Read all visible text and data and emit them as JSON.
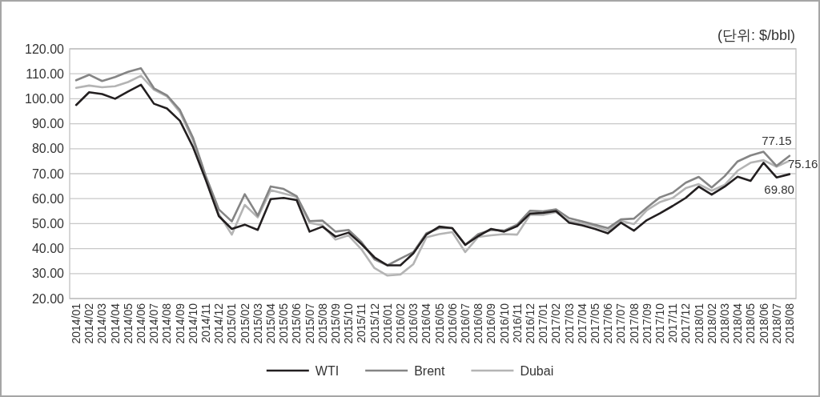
{
  "chart_data": {
    "type": "line",
    "annotations": [
      "(단위: $/bbl)"
    ],
    "categories": [
      "2014/01",
      "2014/02",
      "2014/03",
      "2014/04",
      "2014/05",
      "2014/06",
      "2014/07",
      "2014/08",
      "2014/09",
      "2014/10",
      "2014/11",
      "2014/12",
      "2015/01",
      "2015/02",
      "2015/03",
      "2015/04",
      "2015/05",
      "2015/06",
      "2015/07",
      "2015/08",
      "2015/09",
      "2015/10",
      "2015/11",
      "2015/12",
      "2016/01",
      "2016/02",
      "2016/03",
      "2016/04",
      "2016/05",
      "2016/06",
      "2016/07",
      "2016/08",
      "2016/09",
      "2016/10",
      "2016/11",
      "2016/12",
      "2017/01",
      "2017/02",
      "2017/03",
      "2017/04",
      "2017/05",
      "2017/06",
      "2017/07",
      "2017/08",
      "2017/09",
      "2017/10",
      "2017/11",
      "2017/12",
      "2018/01",
      "2018/02",
      "2018/03",
      "2018/04",
      "2018/05",
      "2018/06",
      "2018/07",
      "2018/08"
    ],
    "ylim": [
      20,
      120
    ],
    "yticks": [
      {
        "value": 20,
        "label": "20.00"
      },
      {
        "value": 30,
        "label": "30.00"
      },
      {
        "value": 40,
        "label": "40.00"
      },
      {
        "value": 50,
        "label": "50.00"
      },
      {
        "value": 60,
        "label": "60.00"
      },
      {
        "value": 70,
        "label": "70.00"
      },
      {
        "value": 80,
        "label": "80.00"
      },
      {
        "value": 90,
        "label": "90.00"
      },
      {
        "value": 100,
        "label": "100.00"
      },
      {
        "value": 110,
        "label": "110.00"
      },
      {
        "value": 120,
        "label": "120.00"
      }
    ],
    "grid": "y",
    "legend": "bottom",
    "series": [
      {
        "name": "WTI",
        "color": "#231f20",
        "values": [
          97.5,
          102.6,
          101.9,
          100.0,
          102.9,
          105.6,
          98.0,
          96.1,
          91.2,
          80.8,
          67.4,
          53.0,
          47.9,
          49.6,
          47.5,
          59.8,
          60.3,
          59.4,
          46.8,
          48.8,
          44.8,
          46.4,
          41.8,
          36.5,
          33.3,
          33.3,
          38.1,
          45.6,
          48.8,
          48.2,
          41.5,
          45.0,
          47.9,
          46.8,
          49.0,
          54.0,
          54.3,
          55.0,
          50.4,
          49.3,
          47.9,
          46.1,
          50.4,
          47.2,
          51.4,
          54.1,
          57.1,
          60.3,
          64.8,
          61.6,
          64.8,
          68.8,
          67.1,
          74.4,
          68.5,
          69.8
        ],
        "value_labels": [
          null,
          null,
          null,
          null,
          null,
          null,
          null,
          null,
          null,
          null,
          null,
          null,
          null,
          null,
          null,
          null,
          null,
          null,
          null,
          null,
          null,
          null,
          null,
          null,
          null,
          null,
          null,
          null,
          null,
          null,
          null,
          null,
          null,
          null,
          null,
          null,
          null,
          null,
          null,
          null,
          null,
          null,
          null,
          null,
          null,
          null,
          null,
          null,
          null,
          null,
          null,
          null,
          null,
          null,
          null,
          "69.80"
        ]
      },
      {
        "name": "Brent",
        "color": "#858585",
        "values": [
          107.4,
          109.6,
          107.1,
          108.7,
          110.8,
          112.2,
          104.2,
          101.4,
          95.5,
          84.5,
          69.0,
          55.7,
          50.9,
          61.8,
          53.2,
          64.9,
          63.9,
          61.0,
          51.0,
          51.2,
          46.8,
          47.5,
          42.6,
          35.7,
          33.3,
          36.0,
          38.6,
          46.1,
          48.2,
          48.2,
          41.5,
          45.8,
          47.5,
          47.2,
          49.6,
          55.2,
          54.9,
          55.7,
          52.2,
          50.9,
          49.6,
          48.2,
          51.7,
          52.0,
          56.4,
          60.5,
          62.4,
          66.4,
          68.7,
          64.5,
          69.0,
          74.9,
          77.3,
          78.8,
          73.1,
          77.15
        ],
        "value_labels": [
          null,
          null,
          null,
          null,
          null,
          null,
          null,
          null,
          null,
          null,
          null,
          null,
          null,
          null,
          null,
          null,
          null,
          null,
          null,
          null,
          null,
          null,
          null,
          null,
          null,
          null,
          null,
          null,
          null,
          null,
          null,
          null,
          null,
          null,
          null,
          null,
          null,
          null,
          null,
          null,
          null,
          null,
          null,
          null,
          null,
          null,
          null,
          null,
          null,
          null,
          null,
          null,
          null,
          null,
          null,
          "77.15"
        ]
      },
      {
        "name": "Dubai",
        "color": "#b4b4b4",
        "values": [
          104.4,
          105.3,
          104.6,
          105.0,
          106.7,
          109.2,
          103.6,
          101.0,
          94.6,
          83.4,
          67.9,
          53.9,
          45.6,
          57.5,
          52.5,
          63.4,
          62.1,
          60.7,
          50.3,
          49.3,
          43.6,
          45.3,
          39.7,
          32.2,
          29.2,
          29.6,
          33.8,
          44.5,
          45.8,
          46.6,
          38.6,
          44.7,
          45.3,
          45.8,
          45.6,
          53.6,
          53.5,
          54.6,
          51.1,
          50.1,
          49.0,
          47.2,
          51.1,
          49.8,
          55.4,
          58.6,
          60.3,
          64.2,
          65.8,
          63.2,
          65.5,
          71.2,
          74.4,
          75.4,
          72.8,
          75.16
        ],
        "value_labels": [
          null,
          null,
          null,
          null,
          null,
          null,
          null,
          null,
          null,
          null,
          null,
          null,
          null,
          null,
          null,
          null,
          null,
          null,
          null,
          null,
          null,
          null,
          null,
          null,
          null,
          null,
          null,
          null,
          null,
          null,
          null,
          null,
          null,
          null,
          null,
          null,
          null,
          null,
          null,
          null,
          null,
          null,
          null,
          null,
          null,
          null,
          null,
          null,
          null,
          null,
          null,
          null,
          null,
          null,
          null,
          "75.16"
        ]
      }
    ]
  }
}
